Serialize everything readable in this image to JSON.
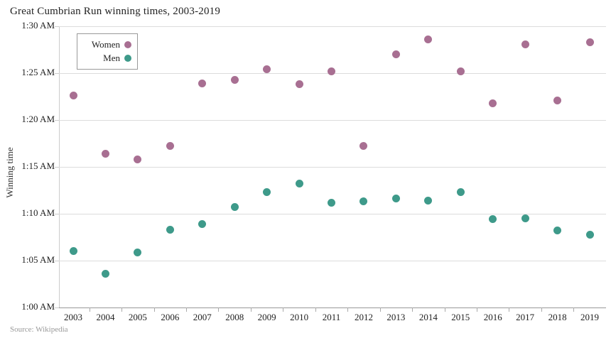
{
  "header": {
    "title": "Great Cumbrian Run winning times, 2003-2019"
  },
  "footer": {
    "source": "Source: Wikipedia"
  },
  "chart_data": {
    "type": "scatter",
    "title": "Great Cumbrian Run winning times, 2003-2019",
    "xlabel": "",
    "ylabel": "Winning time",
    "x_categories": [
      "2003",
      "2004",
      "2005",
      "2006",
      "2007",
      "2008",
      "2009",
      "2010",
      "2011",
      "2012",
      "2013",
      "2014",
      "2015",
      "2016",
      "2017",
      "2018",
      "2019"
    ],
    "y_axis": {
      "unit": "minutes after 1:00",
      "min": 0,
      "max": 30,
      "grid": true,
      "ticks": [
        {
          "minutes": 30,
          "label": "1:30 AM"
        },
        {
          "minutes": 25,
          "label": "1:25 AM"
        },
        {
          "minutes": 20,
          "label": "1:20 AM"
        },
        {
          "minutes": 15,
          "label": "1:15 AM"
        },
        {
          "minutes": 10,
          "label": "1:10 AM"
        },
        {
          "minutes": 5,
          "label": "1:05 AM"
        },
        {
          "minutes": 0,
          "label": "1:00 AM"
        }
      ]
    },
    "legend": {
      "position": "top-left-inside",
      "entries": [
        "Women",
        "Men"
      ]
    },
    "series": [
      {
        "name": "Women",
        "color": "#a86f92",
        "values_minutes_after_1am": [
          22.6,
          16.4,
          15.8,
          17.2,
          23.9,
          24.3,
          25.4,
          23.8,
          25.2,
          17.2,
          27.0,
          28.6,
          25.2,
          21.8,
          28.1,
          22.1,
          28.3
        ]
      },
      {
        "name": "Men",
        "color": "#3e9a8a",
        "values_minutes_after_1am": [
          6.0,
          3.6,
          5.9,
          8.3,
          8.9,
          10.7,
          12.3,
          13.2,
          11.2,
          11.3,
          11.6,
          11.4,
          12.3,
          9.4,
          9.5,
          8.2,
          7.8
        ]
      }
    ]
  }
}
